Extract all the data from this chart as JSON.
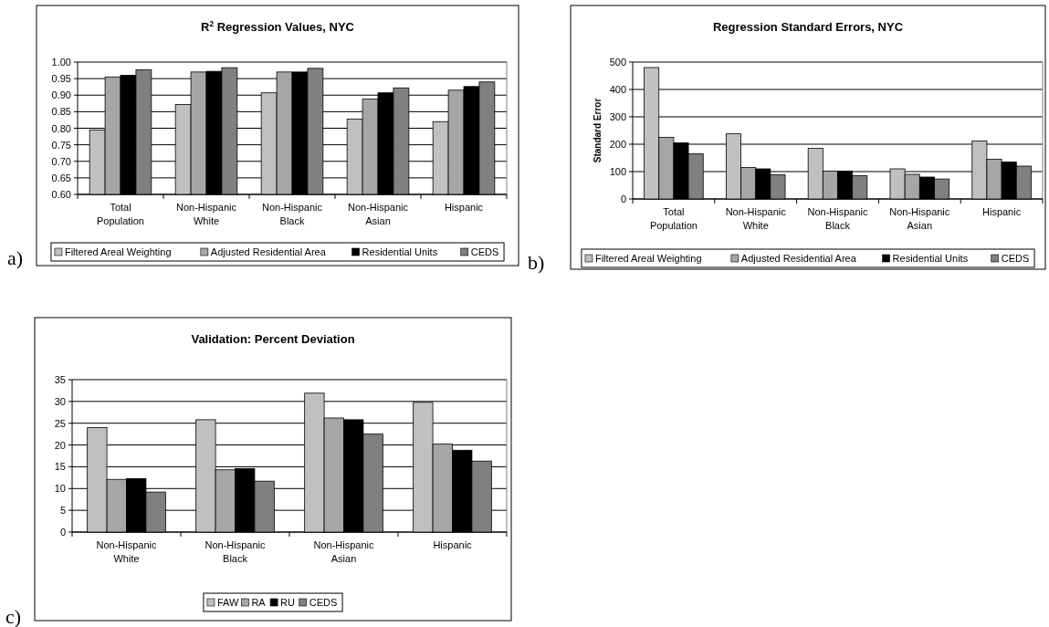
{
  "chart_data": [
    {
      "type": "bar",
      "title": "R$^{2}$ Regression Values, NYC",
      "annotations": [
        "a)"
      ],
      "categories": [
        "Total Population",
        "Non-Hispanic White",
        "Non-Hispanic Black",
        "Non-Hispanic Asian",
        "Hispanic"
      ],
      "series": [
        {
          "name": "Filtered Areal Weighting",
          "color": "#c0c0c0",
          "values": [
            0.795,
            0.872,
            0.907,
            0.828,
            0.82
          ]
        },
        {
          "name": "Adjusted Residential Area",
          "color": "#a6a6a6",
          "values": [
            0.955,
            0.97,
            0.97,
            0.888,
            0.915
          ]
        },
        {
          "name": "Residential Units",
          "color": "#000000",
          "values": [
            0.96,
            0.972,
            0.97,
            0.907,
            0.926
          ]
        },
        {
          "name": "CEDS",
          "color": "#808080",
          "values": [
            0.977,
            0.983,
            0.981,
            0.922,
            0.94
          ]
        }
      ],
      "ylim": [
        0.6,
        1.0
      ],
      "yticks": [
        {
          "value": 0.6,
          "label": "0.60"
        },
        0.65,
        {
          "value": 0.7,
          "label": "0.70"
        },
        0.75,
        {
          "value": 0.8,
          "label": "0.80"
        },
        0.85,
        {
          "value": 0.9,
          "label": "0.90"
        },
        0.95,
        {
          "value": 1.0,
          "label": "1.00"
        }
      ],
      "grid": "y",
      "legend": "bottom"
    },
    {
      "type": "bar",
      "title": "Regression Standard Errors, NYC",
      "ylabel": "Standard Error",
      "annotations": [
        "b)"
      ],
      "categories": [
        "Total Population",
        "Non-Hispanic White",
        "Non-Hispanic Black",
        "Non-Hispanic Asian",
        "Hispanic"
      ],
      "series": [
        {
          "name": "Filtered Areal Weighting",
          "color": "#c0c0c0",
          "values": [
            480,
            238,
            185,
            110,
            212
          ]
        },
        {
          "name": "Adjusted Residential Area",
          "color": "#a6a6a6",
          "values": [
            225,
            115,
            102,
            90,
            145
          ]
        },
        {
          "name": "Residential Units",
          "color": "#000000",
          "values": [
            205,
            110,
            102,
            80,
            135
          ]
        },
        {
          "name": "CEDS",
          "color": "#808080",
          "values": [
            165,
            88,
            85,
            73,
            120
          ]
        }
      ],
      "ylim": [
        0,
        500
      ],
      "yticks": [
        0,
        100,
        200,
        300,
        400,
        500
      ],
      "grid": "y",
      "legend": "bottom"
    },
    {
      "type": "bar",
      "title": "Validation: Percent Deviation",
      "annotations": [
        "c)"
      ],
      "categories": [
        "Non-Hispanic White",
        "Non-Hispanic Black",
        "Non-Hispanic Asian",
        "Hispanic"
      ],
      "series": [
        {
          "name": "FAW",
          "color": "#c0c0c0",
          "values": [
            24,
            25.8,
            31.9,
            29.8
          ]
        },
        {
          "name": "RA",
          "color": "#a6a6a6",
          "values": [
            12.1,
            14.3,
            26.2,
            20.2
          ]
        },
        {
          "name": "RU",
          "color": "#000000",
          "values": [
            12.3,
            14.6,
            25.8,
            18.8
          ]
        },
        {
          "name": "CEDS",
          "color": "#808080",
          "values": [
            9.2,
            11.7,
            22.5,
            16.3
          ]
        }
      ],
      "ylim": [
        0,
        35
      ],
      "yticks": [
        0,
        5,
        10,
        15,
        20,
        25,
        30,
        35
      ],
      "grid": "y",
      "legend": "bottom"
    }
  ]
}
